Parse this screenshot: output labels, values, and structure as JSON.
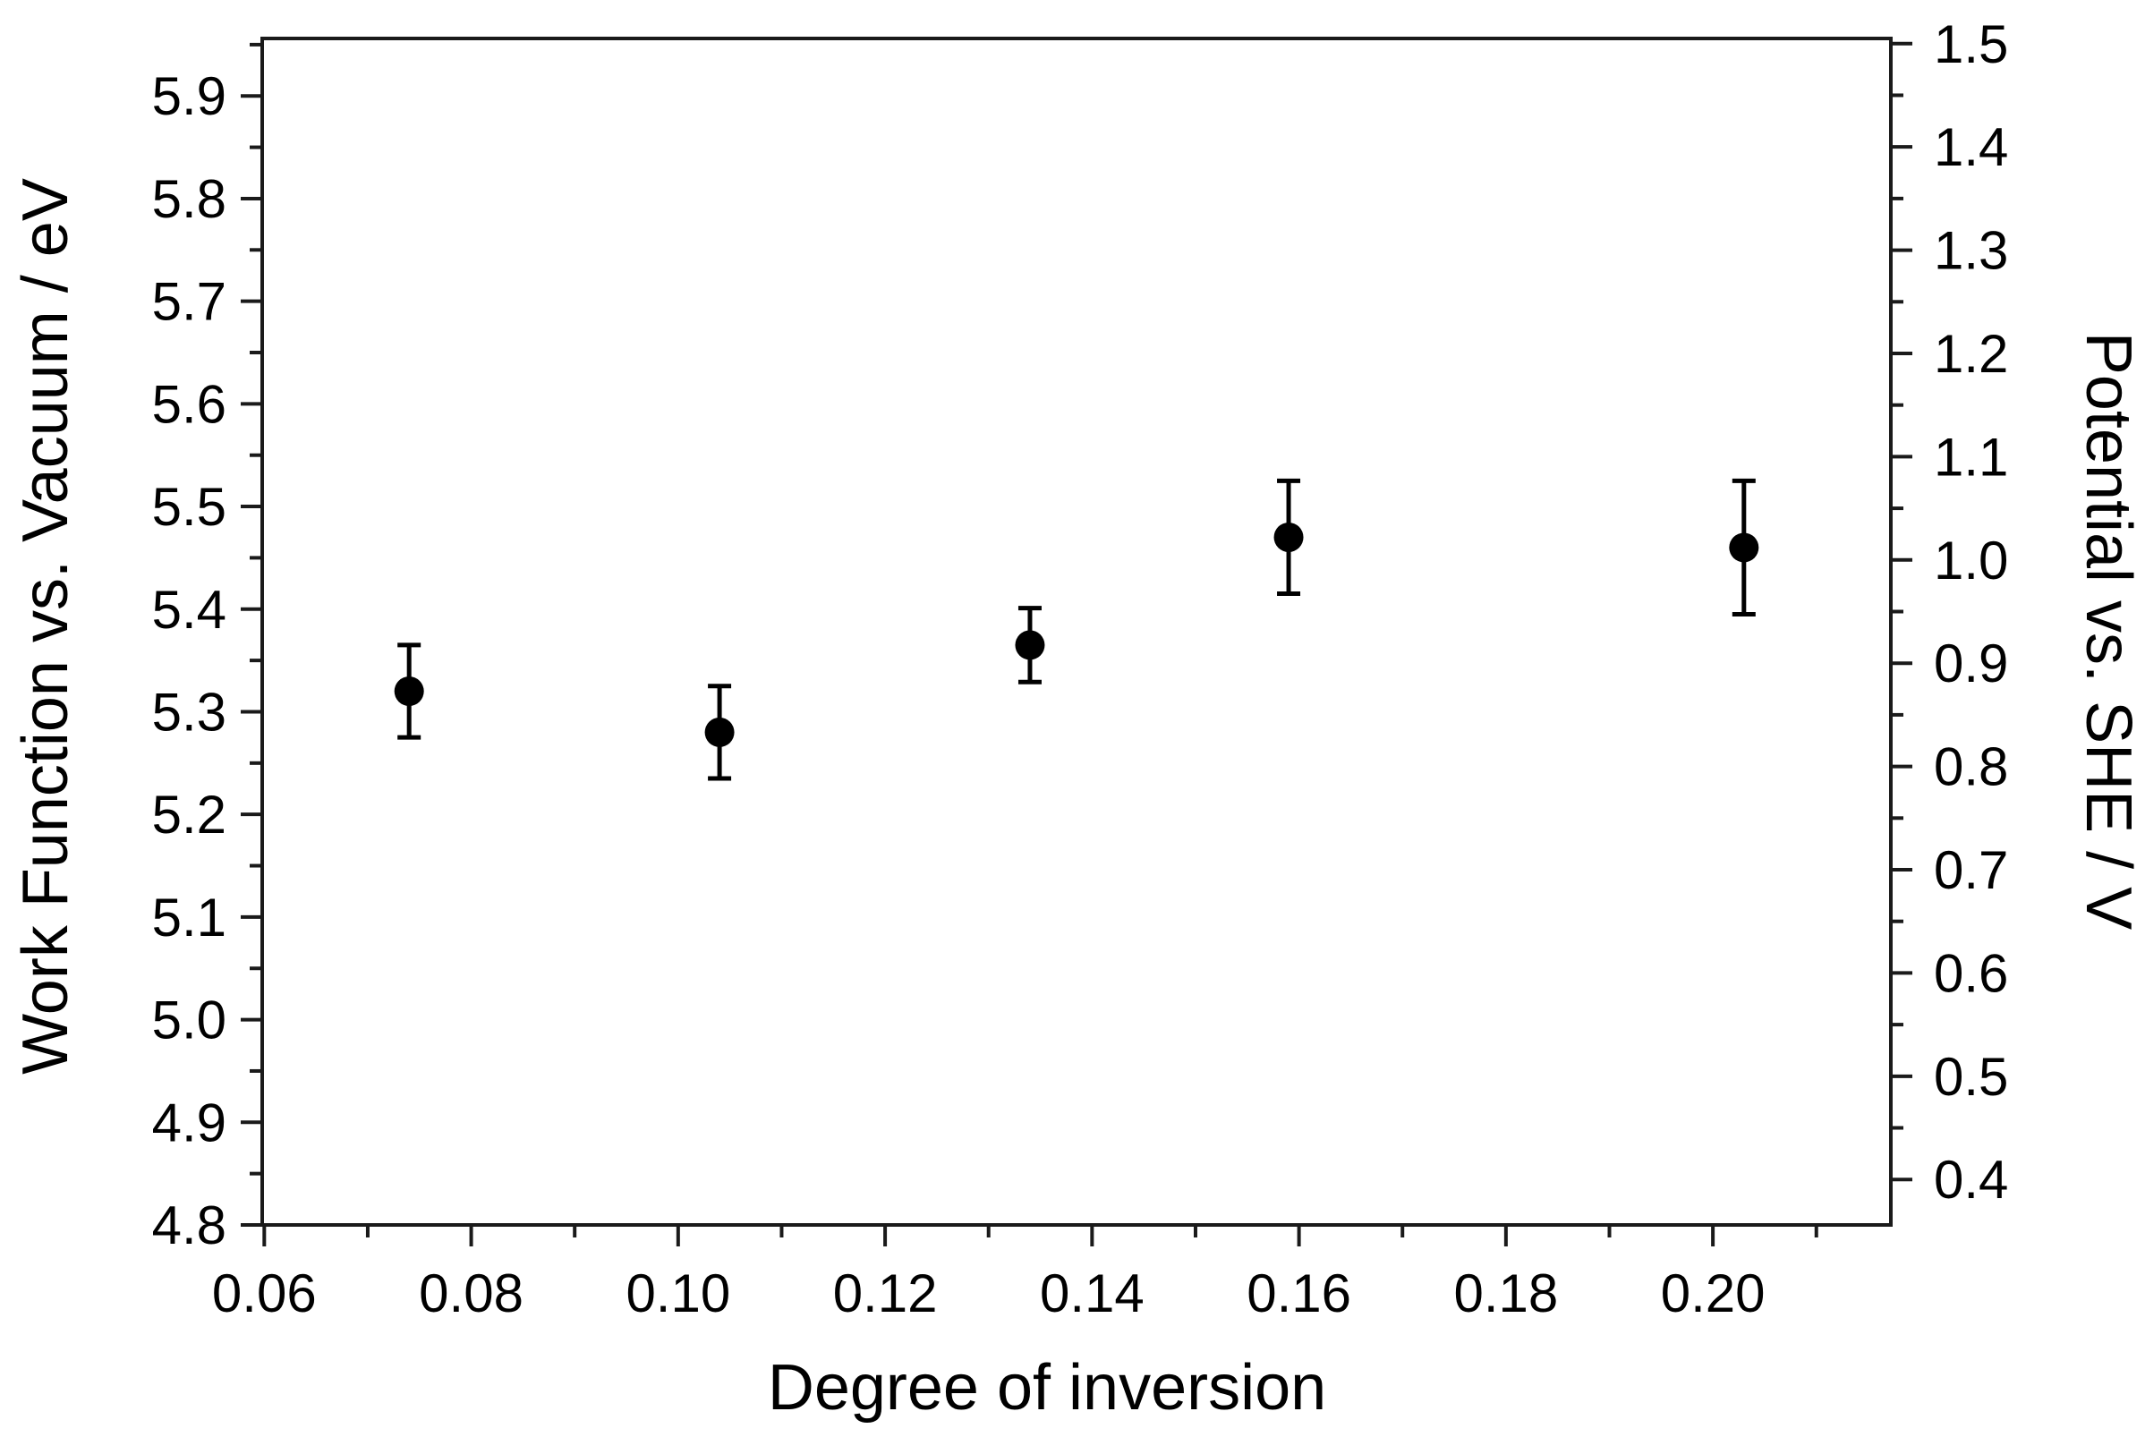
{
  "figure": {
    "background": "#ffffff",
    "axis_color": "#1a1a1a",
    "text_color": "#000000",
    "marker_color": "#000000"
  },
  "chart_data": {
    "type": "scatter",
    "title": "",
    "xlabel": "Degree of inversion",
    "ylabel_left": "Work Function vs. Vacuum / eV",
    "ylabel_right": "Potential vs. SHE / V",
    "xlim": [
      0.0598,
      0.2172
    ],
    "ylim_left": [
      4.8,
      5.956
    ],
    "ylim_right": [
      0.356,
      1.505
    ],
    "grid": false,
    "legend": false,
    "x_major_ticks": [
      0.06,
      0.08,
      0.1,
      0.12,
      0.14,
      0.16,
      0.18,
      0.2
    ],
    "x_tick_labels": [
      "0.06",
      "0.08",
      "0.10",
      "0.12",
      "0.14",
      "0.16",
      "0.18",
      "0.20"
    ],
    "x_minor_ticks": [
      0.07,
      0.09,
      0.11,
      0.13,
      0.15,
      0.17,
      0.19,
      0.21
    ],
    "y_left_major_ticks": [
      4.8,
      4.9,
      5.0,
      5.1,
      5.2,
      5.3,
      5.4,
      5.5,
      5.6,
      5.7,
      5.8,
      5.9
    ],
    "y_left_tick_labels": [
      "4.8",
      "4.9",
      "5.0",
      "5.1",
      "5.2",
      "5.3",
      "5.4",
      "5.5",
      "5.6",
      "5.7",
      "5.8",
      "5.9"
    ],
    "y_left_minor_ticks": [
      4.85,
      4.95,
      5.05,
      5.15,
      5.25,
      5.35,
      5.45,
      5.55,
      5.65,
      5.75,
      5.85,
      5.95
    ],
    "y_right_major_ticks": [
      0.4,
      0.5,
      0.6,
      0.7,
      0.8,
      0.9,
      1.0,
      1.1,
      1.2,
      1.3,
      1.4,
      1.5
    ],
    "y_right_tick_labels": [
      "0.4",
      "0.5",
      "0.6",
      "0.7",
      "0.8",
      "0.9",
      "1.0",
      "1.1",
      "1.2",
      "1.3",
      "1.4",
      "1.5"
    ],
    "y_right_minor_ticks": [
      0.45,
      0.55,
      0.65,
      0.75,
      0.85,
      0.95,
      1.05,
      1.15,
      1.25,
      1.35,
      1.45
    ],
    "series": [
      {
        "name": "work-function-vs-degree-of-inversion",
        "marker": "circle",
        "color": "#000000",
        "points": [
          {
            "x": 0.074,
            "y": 5.32,
            "yerr": 0.045
          },
          {
            "x": 0.104,
            "y": 5.28,
            "yerr": 0.045
          },
          {
            "x": 0.134,
            "y": 5.365,
            "yerr": 0.036
          },
          {
            "x": 0.159,
            "y": 5.47,
            "yerr": 0.055
          },
          {
            "x": 0.203,
            "y": 5.46,
            "yerr": 0.065
          }
        ]
      }
    ]
  }
}
